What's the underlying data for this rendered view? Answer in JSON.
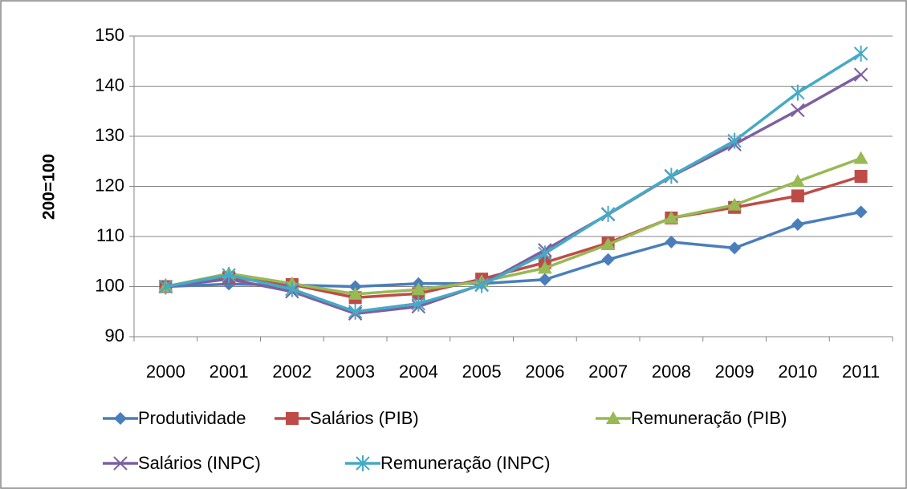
{
  "chart_data": {
    "type": "line",
    "ylabel": "200=100",
    "categories": [
      "2000",
      "2001",
      "2002",
      "2003",
      "2004",
      "2005",
      "2006",
      "2007",
      "2008",
      "2009",
      "2010",
      "2011"
    ],
    "series": [
      {
        "name": "Produtividade",
        "color": "#4a7ebb",
        "marker": "diamond",
        "values": [
          100,
          100.5,
          100.3,
          100,
          100.6,
          100.6,
          101.4,
          105.4,
          108.9,
          107.7,
          112.4,
          114.9
        ]
      },
      {
        "name": "Salários (PIB)",
        "color": "#be4b48",
        "marker": "square",
        "values": [
          100,
          101.8,
          100.4,
          97.8,
          98.6,
          101.5,
          104.8,
          108.7,
          113.7,
          115.8,
          118.1,
          122.0
        ]
      },
      {
        "name": "Remuneração (PIB)",
        "color": "#98b954",
        "marker": "triangle",
        "values": [
          100,
          102.6,
          100.6,
          98.5,
          99.4,
          101.0,
          103.7,
          108.4,
          113.7,
          116.3,
          121.0,
          125.6
        ]
      },
      {
        "name": "Salários (INPC)",
        "color": "#7d60a0",
        "marker": "x",
        "values": [
          100,
          101.5,
          99.0,
          94.6,
          96.0,
          100.4,
          107.3,
          114.4,
          122.0,
          128.4,
          135.2,
          142.3
        ]
      },
      {
        "name": "Remuneração (INPC)",
        "color": "#46aac5",
        "marker": "star",
        "values": [
          100,
          102.3,
          99.5,
          95.0,
          96.6,
          100.3,
          106.6,
          114.5,
          122.1,
          129.1,
          138.7,
          146.5
        ]
      }
    ],
    "ylim": [
      90,
      150
    ],
    "yticks": [
      90,
      100,
      110,
      120,
      130,
      140,
      150
    ],
    "grid": true,
    "legend": "bottom"
  }
}
